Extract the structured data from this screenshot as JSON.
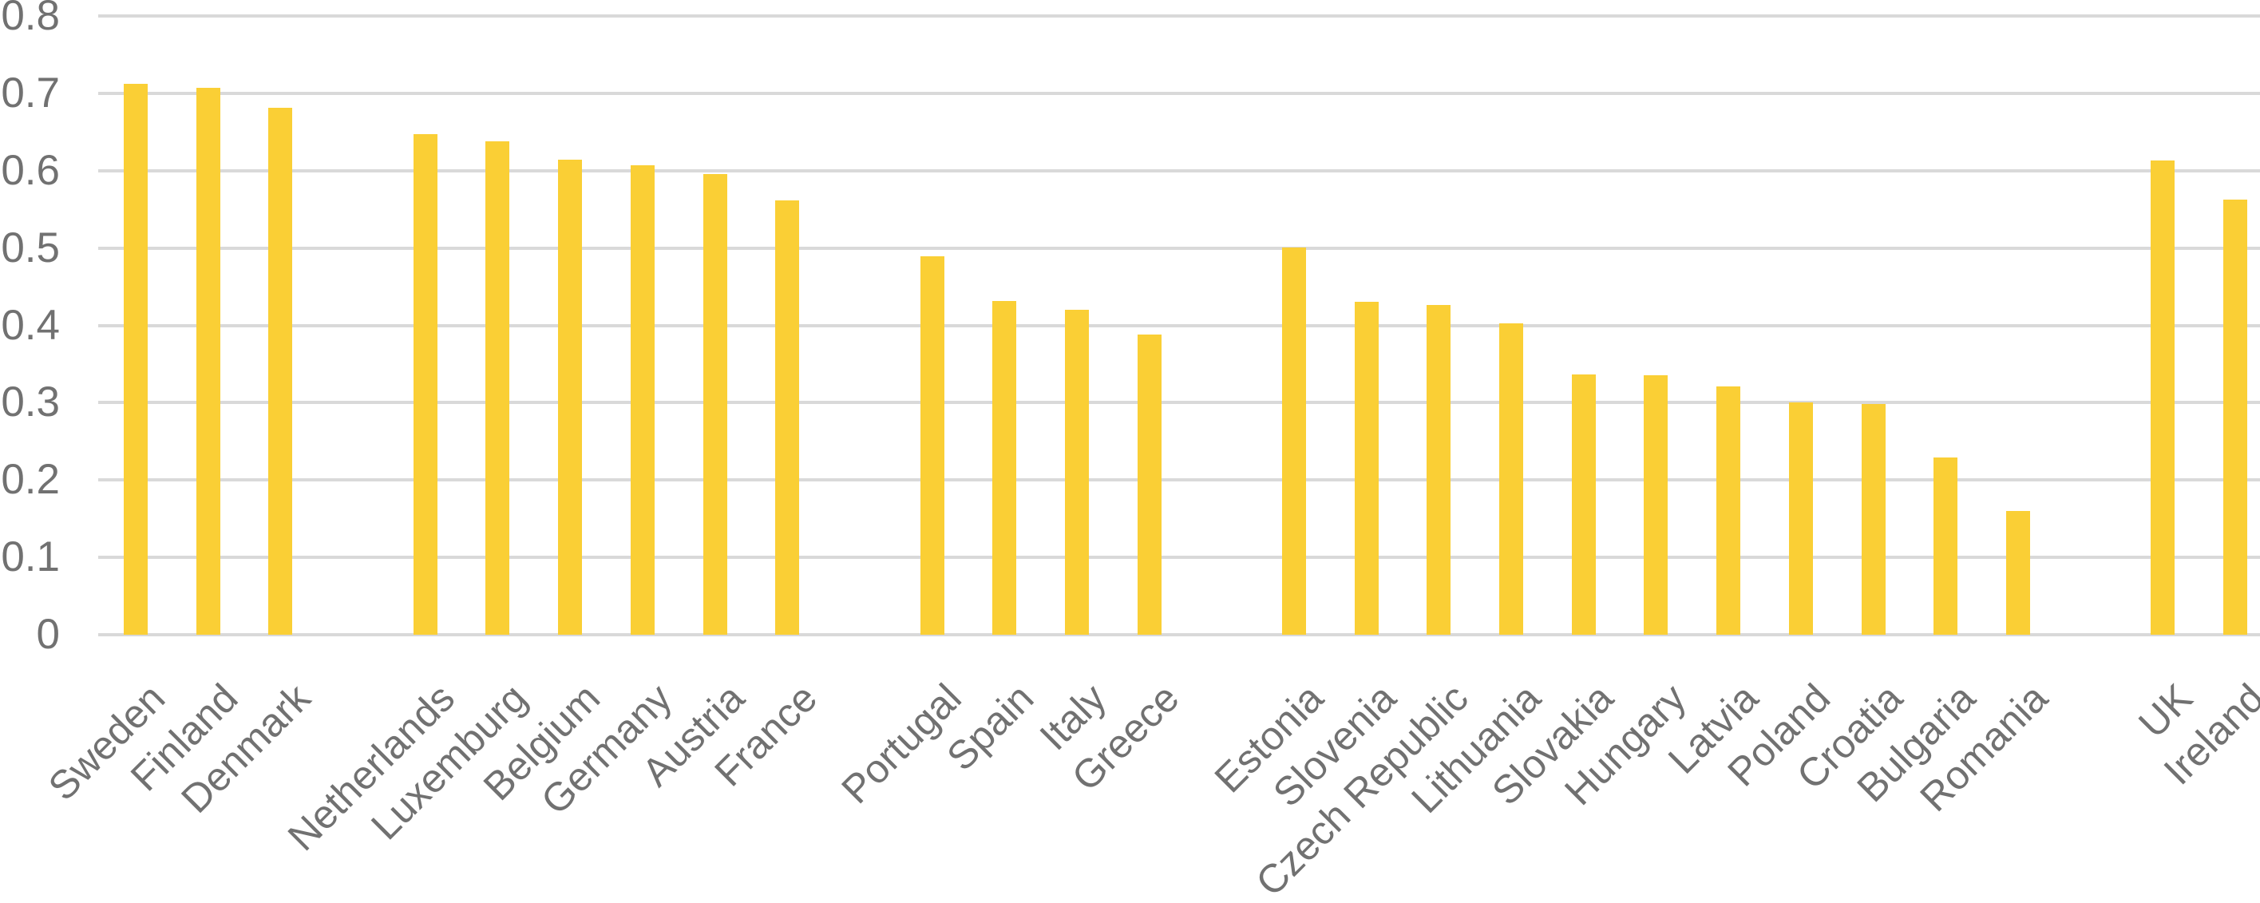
{
  "chart_data": {
    "type": "bar",
    "title": "",
    "xlabel": "",
    "ylabel": "",
    "categories": [
      "Sweden",
      "Finland",
      "Denmark",
      "Netherlands",
      "Luxemburg",
      "Belgium",
      "Germany",
      "Austria",
      "France",
      "Portugal",
      "Spain",
      "Italy",
      "Greece",
      "Estonia",
      "Slovenia",
      "Czech Republic",
      "Lithuania",
      "Slovakia",
      "Hungary",
      "Latvia",
      "Poland",
      "Croatia",
      "Bulgaria",
      "Romania",
      "UK",
      "Ireland"
    ],
    "values": [
      0.712,
      0.707,
      0.681,
      0.647,
      0.638,
      0.614,
      0.607,
      0.596,
      0.562,
      0.489,
      0.431,
      0.42,
      0.388,
      0.501,
      0.43,
      0.426,
      0.403,
      0.337,
      0.336,
      0.321,
      0.3,
      0.298,
      0.229,
      0.16,
      0.613,
      0.563
    ],
    "group_sizes": [
      3,
      6,
      4,
      11,
      2
    ],
    "y_tick_labels": [
      "0",
      "0.1",
      "0.2",
      "0.3",
      "0.4",
      "0.5",
      "0.6",
      "0.7",
      "0.8"
    ],
    "ylim": [
      0,
      0.8
    ],
    "grid": true,
    "legend": "none",
    "bar_color": "#FACF35",
    "gridline_color": "#D9D9D9",
    "axis_label_color": "#717171",
    "background": "#FFFFFF"
  }
}
